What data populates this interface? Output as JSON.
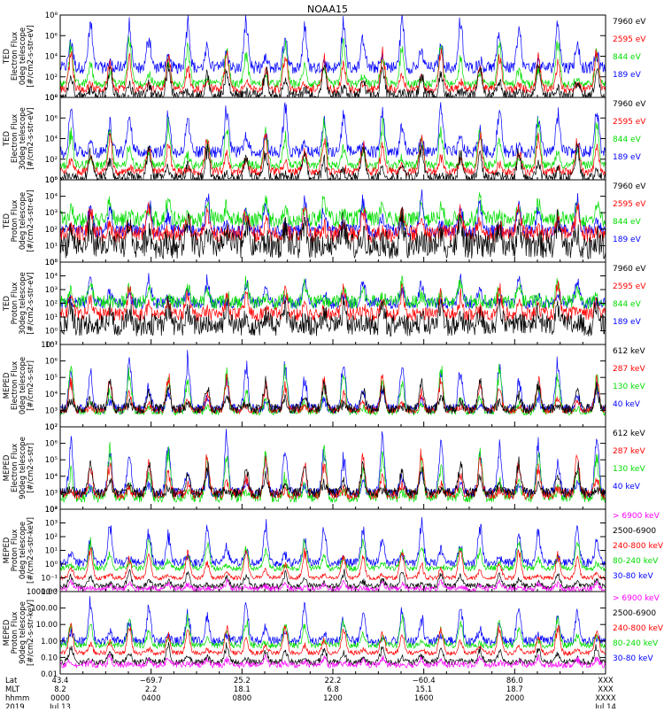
{
  "chart_data": {
    "type": "line",
    "title": "NOAA15",
    "x_range_hours": [
      0,
      24
    ],
    "panels": [
      {
        "id": "ted-e-0",
        "ylabel": [
          "TED",
          "Electron Flux",
          "0deg telescope",
          "[#/cm2-s-str-eV]"
        ],
        "yticks": [
          "10⁰",
          "10²",
          "10⁴",
          "10⁶",
          "10⁸"
        ],
        "ylog": [
          0,
          8
        ],
        "legend": [
          {
            "label": "7960 eV",
            "color": "#000000"
          },
          {
            "label": "2595 eV",
            "color": "#ff0000"
          },
          {
            "label": "844 eV",
            "color": "#00dd00"
          },
          {
            "label": "189 eV",
            "color": "#0000ff"
          }
        ],
        "series": [
          {
            "color": "#0000ff",
            "base": 2.9,
            "noise": 0.6,
            "peak": 4.6
          },
          {
            "color": "#00dd00",
            "base": 1.3,
            "noise": 0.4,
            "peak": 4.1
          },
          {
            "color": "#ff0000",
            "base": 0.8,
            "noise": 0.4,
            "peak": 3.6
          },
          {
            "color": "#000000",
            "base": 0.2,
            "noise": 0.5,
            "peak": 2.8
          }
        ]
      },
      {
        "id": "ted-e-30",
        "ylabel": [
          "TED",
          "Electron Flux",
          "30deg telescope",
          "[#/cm2-s-str-eV]"
        ],
        "yticks": [
          "10⁰",
          "10²",
          "10⁴",
          "10⁶",
          "10⁸"
        ],
        "ylog": [
          0,
          8
        ],
        "legend": [
          {
            "label": "7960 eV",
            "color": "#000000"
          },
          {
            "label": "2595 eV",
            "color": "#ff0000"
          },
          {
            "label": "844 eV",
            "color": "#00dd00"
          },
          {
            "label": "189 eV",
            "color": "#0000ff"
          }
        ],
        "series": [
          {
            "color": "#0000ff",
            "base": 2.7,
            "noise": 0.6,
            "peak": 4.4
          },
          {
            "color": "#00dd00",
            "base": 1.4,
            "noise": 0.4,
            "peak": 4.0
          },
          {
            "color": "#ff0000",
            "base": 0.8,
            "noise": 0.4,
            "peak": 3.5
          },
          {
            "color": "#000000",
            "base": 0.2,
            "noise": 0.5,
            "peak": 2.9
          }
        ]
      },
      {
        "id": "ted-p-0",
        "ylabel": [
          "TED",
          "Proton Flux",
          "0deg telescope",
          "[#/cm2-s-str-eV]"
        ],
        "yticks": [
          "10⁰",
          "10¹",
          "10²",
          "10³",
          "10⁴",
          "10⁵"
        ],
        "ylog": [
          0,
          5
        ],
        "legend": [
          {
            "label": "7960 eV",
            "color": "#000000"
          },
          {
            "label": "2595 eV",
            "color": "#ff0000"
          },
          {
            "label": "844 eV",
            "color": "#00dd00"
          },
          {
            "label": "189 eV",
            "color": "#0000ff"
          }
        ],
        "series": [
          {
            "color": "#00dd00",
            "base": 2.6,
            "noise": 0.5,
            "peak": 1.2
          },
          {
            "color": "#0000ff",
            "base": 1.9,
            "noise": 0.4,
            "peak": 2.0
          },
          {
            "color": "#ff0000",
            "base": 1.7,
            "noise": 0.5,
            "peak": 1.6
          },
          {
            "color": "#000000",
            "base": 1.0,
            "noise": 0.8,
            "peak": 1.5
          }
        ]
      },
      {
        "id": "ted-p-30",
        "ylabel": [
          "TED",
          "Proton Flux",
          "30deg telescope",
          "[#/cm2-s-str-eV]"
        ],
        "yticks": [
          "10⁻¹",
          "10⁰",
          "10¹",
          "10²",
          "10³",
          "10⁴",
          "10⁵"
        ],
        "ylog": [
          -1,
          5
        ],
        "legend": [
          {
            "label": "7960 eV",
            "color": "#000000"
          },
          {
            "label": "2595 eV",
            "color": "#ff0000"
          },
          {
            "label": "844 eV",
            "color": "#00dd00"
          },
          {
            "label": "189 eV",
            "color": "#0000ff"
          }
        ],
        "series": [
          {
            "color": "#0000ff",
            "base": 2.0,
            "noise": 0.4,
            "peak": 1.8
          },
          {
            "color": "#00dd00",
            "base": 2.1,
            "noise": 0.5,
            "peak": 1.4
          },
          {
            "color": "#ff0000",
            "base": 1.2,
            "noise": 0.5,
            "peak": 1.8
          },
          {
            "color": "#000000",
            "base": 0.4,
            "noise": 0.8,
            "peak": 1.5
          }
        ]
      },
      {
        "id": "meped-e-0",
        "ylabel": [
          "MEPED",
          "Electron Flux",
          "0deg telescope",
          "[#/cm2-s-str]"
        ],
        "yticks": [
          "10²",
          "10³",
          "10⁴",
          "10⁵",
          "10⁶",
          "10⁷"
        ],
        "ylog": [
          2,
          7
        ],
        "legend": [
          {
            "label": "612 keV",
            "color": "#000000"
          },
          {
            "label": "287 keV",
            "color": "#ff0000"
          },
          {
            "label": "130 keV",
            "color": "#00dd00"
          },
          {
            "label": "40 keV",
            "color": "#0000ff"
          }
        ],
        "series": [
          {
            "color": "#0000ff",
            "base": 3.1,
            "noise": 0.3,
            "peak": 3.0
          },
          {
            "color": "#00dd00",
            "base": 2.9,
            "noise": 0.2,
            "peak": 2.6
          },
          {
            "color": "#ff0000",
            "base": 3.0,
            "noise": 0.2,
            "peak": 2.0
          },
          {
            "color": "#000000",
            "base": 3.1,
            "noise": 0.3,
            "peak": 1.6
          }
        ]
      },
      {
        "id": "meped-e-90",
        "ylabel": [
          "MEPED",
          "Electron Flux",
          "90deg telescope",
          "[#/cm2-s-str]"
        ],
        "yticks": [
          "10²",
          "10³",
          "10⁴",
          "10⁵",
          "10⁶",
          "10⁷"
        ],
        "ylog": [
          2,
          7
        ],
        "legend": [
          {
            "label": "612 keV",
            "color": "#000000"
          },
          {
            "label": "287 keV",
            "color": "#ff0000"
          },
          {
            "label": "130 keV",
            "color": "#00dd00"
          },
          {
            "label": "40 keV",
            "color": "#0000ff"
          }
        ],
        "series": [
          {
            "color": "#0000ff",
            "base": 3.0,
            "noise": 0.3,
            "peak": 3.2
          },
          {
            "color": "#00dd00",
            "base": 2.7,
            "noise": 0.3,
            "peak": 2.9
          },
          {
            "color": "#ff0000",
            "base": 2.9,
            "noise": 0.3,
            "peak": 2.3
          },
          {
            "color": "#000000",
            "base": 3.0,
            "noise": 0.3,
            "peak": 1.8
          }
        ]
      },
      {
        "id": "meped-p-0",
        "ylabel": [
          "MEPED",
          "Proton Flux",
          "0deg telescope",
          "[#/cm2-s-str-keV]"
        ],
        "yticks": [
          "10⁻²",
          "10⁻¹",
          "10⁰",
          "10¹",
          "10²",
          "10³",
          "10⁴"
        ],
        "ylog": [
          -2,
          4
        ],
        "legend": [
          {
            "label": "> 6900 keV",
            "color": "#ff00ff"
          },
          {
            "label": "2500-6900",
            "color": "#000000"
          },
          {
            "label": "240-800 keV",
            "color": "#ff0000"
          },
          {
            "label": "80-240 keV",
            "color": "#00dd00"
          },
          {
            "label": "30-80 keV",
            "color": "#0000ff"
          }
        ],
        "series": [
          {
            "color": "#0000ff",
            "base": 0.1,
            "noise": 0.3,
            "peak": 2.8
          },
          {
            "color": "#00dd00",
            "base": -0.3,
            "noise": 0.2,
            "peak": 2.0
          },
          {
            "color": "#ff0000",
            "base": -1.0,
            "noise": 0.15,
            "peak": 2.0
          },
          {
            "color": "#000000",
            "base": -1.6,
            "noise": 0.2,
            "peak": 1.0
          },
          {
            "color": "#ff00ff",
            "base": -1.8,
            "noise": 0.2,
            "peak": 0.5
          }
        ]
      },
      {
        "id": "meped-p-90",
        "ylabel": [
          "MEPED",
          "Proton Flux",
          "90deg telescope",
          "[#/cm2-s-str-keV]"
        ],
        "yticks": [
          "0.01",
          "0.10",
          "1.00",
          "10.00",
          "100.00",
          "1000.00"
        ],
        "ylog": [
          -2,
          3.5
        ],
        "legend": [
          {
            "label": "> 6900 keV",
            "color": "#ff00ff"
          },
          {
            "label": "2500-6900",
            "color": "#000000"
          },
          {
            "label": "240-800 keV",
            "color": "#ff0000"
          },
          {
            "label": "80-240 keV",
            "color": "#00dd00"
          },
          {
            "label": "30-80 keV",
            "color": "#0000ff"
          }
        ],
        "series": [
          {
            "color": "#0000ff",
            "base": 0.2,
            "noise": 0.3,
            "peak": 2.4
          },
          {
            "color": "#00dd00",
            "base": -0.1,
            "noise": 0.2,
            "peak": 1.8
          },
          {
            "color": "#ff0000",
            "base": -0.6,
            "noise": 0.15,
            "peak": 1.8
          },
          {
            "color": "#000000",
            "base": -1.2,
            "noise": 0.2,
            "peak": 1.0
          },
          {
            "color": "#ff00ff",
            "base": -1.4,
            "noise": 0.2,
            "peak": 0.5
          }
        ]
      }
    ],
    "xaxis": {
      "row_labels": [
        "Lat",
        "MLT",
        "hhmm",
        "2019"
      ],
      "columns": [
        {
          "hour": 0,
          "values": [
            "43.4",
            "8.2",
            "0000",
            "Jul 13"
          ]
        },
        {
          "hour": 4,
          "values": [
            "−69.7",
            "2.2",
            "0400",
            ""
          ]
        },
        {
          "hour": 8,
          "values": [
            "25.2",
            "18.1",
            "0800",
            ""
          ]
        },
        {
          "hour": 12,
          "values": [
            "22.2",
            "6.8",
            "1200",
            ""
          ]
        },
        {
          "hour": 16,
          "values": [
            "−60.4",
            "15.1",
            "1600",
            ""
          ]
        },
        {
          "hour": 20,
          "values": [
            "86.0",
            "18.7",
            "2000",
            ""
          ]
        },
        {
          "hour": 24,
          "values": [
            "XXX",
            "XXX",
            "XXXX",
            "Jul 14"
          ]
        }
      ]
    },
    "passes_per_day": 28
  }
}
